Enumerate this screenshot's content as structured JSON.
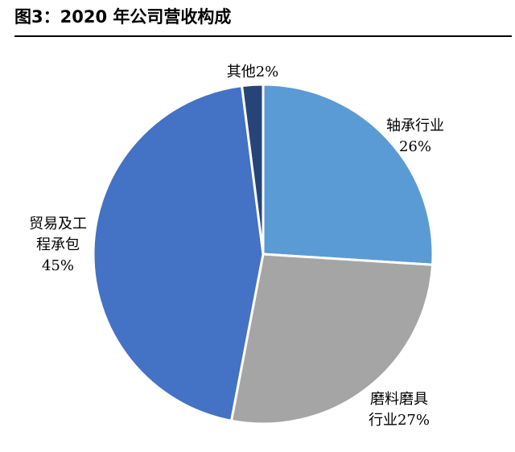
{
  "figure": {
    "title": "图3：2020 年公司营收构成"
  },
  "chart_data": {
    "type": "pie",
    "title": "图3：2020 年公司营收构成",
    "start_angle_deg": 0,
    "direction": "clockwise",
    "legend": "none",
    "slices": [
      {
        "label": "轴承行业",
        "value": 26,
        "value_label": "26%",
        "label_lines": [
          "轴承行业",
          "26%"
        ],
        "color": "#5B9BD5"
      },
      {
        "label": "磨料磨具行业",
        "value": 27,
        "value_label": "27%",
        "label_lines": [
          "磨料磨具",
          "行业27%"
        ],
        "color": "#A5A5A5"
      },
      {
        "label": "贸易及工程承包",
        "value": 45,
        "value_label": "45%",
        "label_lines": [
          "贸易及工",
          "程承包",
          "45%"
        ],
        "color": "#4472C4"
      },
      {
        "label": "其他",
        "value": 2,
        "value_label": "2%",
        "label_lines": [
          "其他2%"
        ],
        "color": "#264478"
      }
    ]
  }
}
